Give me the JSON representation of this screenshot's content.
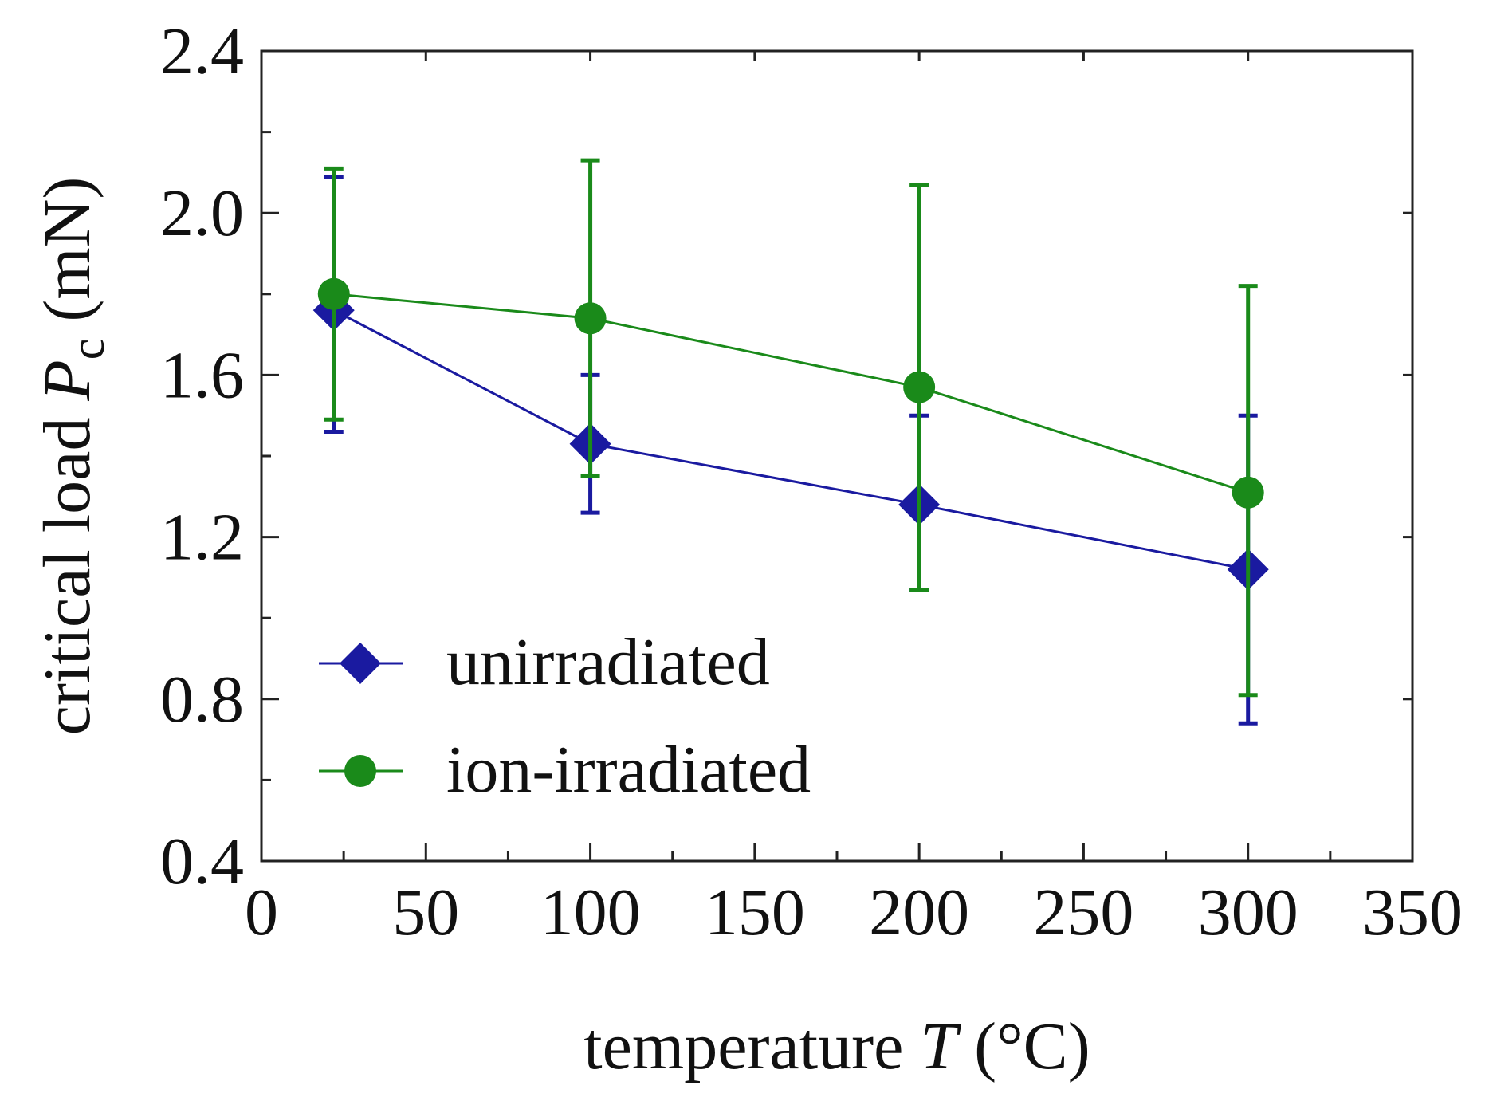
{
  "chart_data": {
    "type": "line",
    "title": "",
    "xlabel": {
      "prefix": "temperature ",
      "var": "T",
      "unit": " (°C)"
    },
    "ylabel": {
      "prefix": "critical load ",
      "var": "P",
      "sub": "c",
      "unit": " (mN)"
    },
    "xlim": [
      0,
      350
    ],
    "ylim": [
      0.4,
      2.4
    ],
    "x_ticks": [
      0,
      50,
      100,
      150,
      200,
      250,
      300,
      350
    ],
    "y_ticks": [
      0.4,
      0.8,
      1.2,
      1.6,
      2.0,
      2.4
    ],
    "x_tick_labels": [
      "0",
      "50",
      "100",
      "150",
      "200",
      "250",
      "300",
      "350"
    ],
    "y_tick_labels": [
      "0.4",
      "0.8",
      "1.2",
      "1.6",
      "2.0",
      "2.4"
    ],
    "legend_position": "bottom-left",
    "series": [
      {
        "name": "unirradiated",
        "marker": "diamond",
        "color": "#1a1aa0",
        "x": [
          22,
          100,
          200,
          300
        ],
        "values": [
          1.76,
          1.43,
          1.28,
          1.12
        ],
        "err_low": [
          1.46,
          1.26,
          1.07,
          0.74
        ],
        "err_high": [
          2.09,
          1.6,
          1.5,
          1.5
        ]
      },
      {
        "name": "ion-irradiated",
        "marker": "circle",
        "color": "#1a8a1a",
        "x": [
          22,
          100,
          200,
          300
        ],
        "values": [
          1.8,
          1.74,
          1.57,
          1.31
        ],
        "err_low": [
          1.49,
          1.35,
          1.07,
          0.81
        ],
        "err_high": [
          2.11,
          2.13,
          2.07,
          1.82
        ]
      }
    ]
  }
}
